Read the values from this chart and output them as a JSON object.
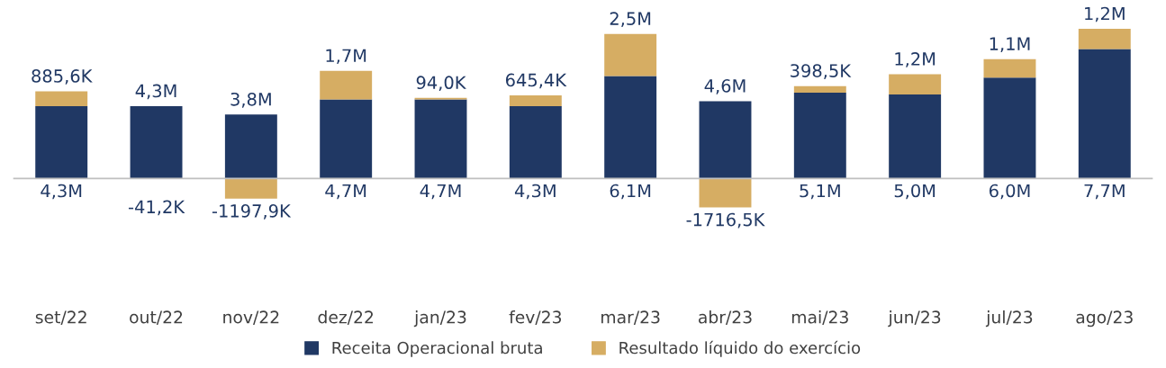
{
  "chart_data": {
    "type": "bar",
    "stacked": true,
    "legend": "bottom",
    "categories": [
      "set/22",
      "out/22",
      "nov/22",
      "dez/22",
      "jan/23",
      "fev/23",
      "mar/23",
      "abr/23",
      "mai/23",
      "jun/23",
      "jul/23",
      "ago/23"
    ],
    "series": [
      {
        "name": "Receita Operacional bruta",
        "color": "#203864",
        "values": [
          4300000,
          4300000,
          3800000,
          4700000,
          4700000,
          4300000,
          6100000,
          4600000,
          5100000,
          5000000,
          6000000,
          7700000
        ],
        "value_labels": [
          "4,3M",
          "4,3M",
          "3,8M",
          "4,7M",
          "4,7M",
          "4,3M",
          "6,1M",
          "4,6M",
          "5,1M",
          "5,0M",
          "6,0M",
          "7,7M"
        ]
      },
      {
        "name": "Resultado líquido do exercício",
        "color": "#d6ad63",
        "values": [
          885600,
          -41200,
          -1197900,
          1700000,
          94000,
          645400,
          2500000,
          -1716500,
          398500,
          1200000,
          1100000,
          1200000
        ],
        "value_labels": [
          "885,6K",
          "-41,2K",
          "-1197,9K",
          "1,7M",
          "94,0K",
          "645,4K",
          "2,5M",
          "-1716,5K",
          "398,5K",
          "1,2M",
          "1,1M",
          "1,2M"
        ]
      }
    ]
  }
}
